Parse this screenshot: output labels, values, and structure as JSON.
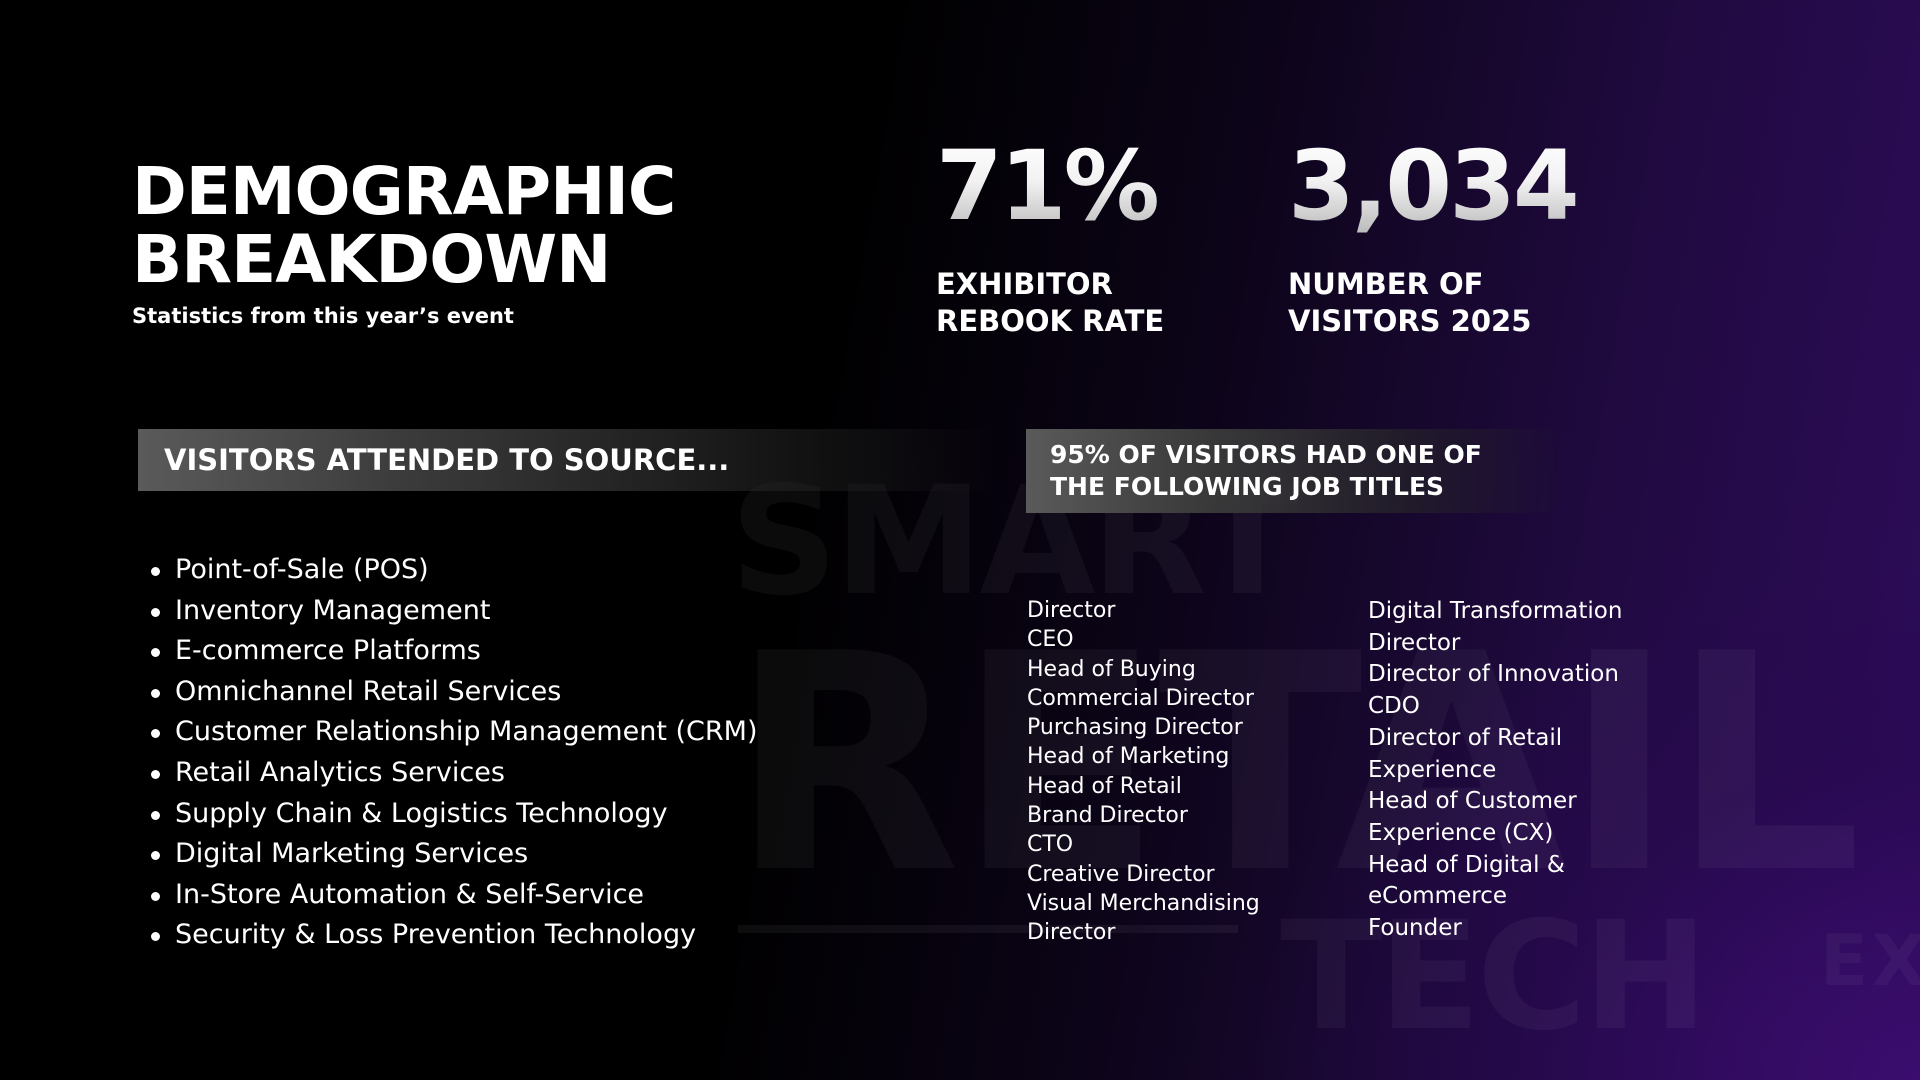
{
  "watermark": {
    "line1": "SMART",
    "line2": "RETAIL",
    "line3": "TECH",
    "line4": "EX"
  },
  "header": {
    "title_line1": "DEMOGRAPHIC",
    "title_line2": "BREAKDOWN",
    "subtitle": "Statistics from this year’s event"
  },
  "stats": [
    {
      "value": "71%",
      "label_line1": "EXHIBITOR",
      "label_line2": "REBOOK RATE"
    },
    {
      "value": "3,034",
      "label_line1": "NUMBER OF",
      "label_line2": "VISITORS 2025"
    }
  ],
  "sources": {
    "heading": "VISITORS ATTENDED TO SOURCE...",
    "items": [
      "Point-of-Sale (POS)",
      "Inventory Management",
      "E-commerce Platforms",
      "Omnichannel Retail Services",
      "Customer Relationship Management (CRM)",
      "Retail Analytics Services",
      "Supply Chain & Logistics Technology",
      "Digital Marketing Services",
      "In-Store Automation & Self-Service",
      "Security & Loss Prevention Technology"
    ]
  },
  "job_titles": {
    "heading_line1": "95% OF VISITORS HAD ONE OF",
    "heading_line2": "THE FOLLOWING JOB TITLES",
    "column1": [
      "Director",
      "CEO",
      "Head of Buying",
      "Commercial Director",
      "Purchasing Director",
      "Head of Marketing",
      "Head of Retail",
      "Brand Director",
      "CTO",
      "Creative Director",
      "Visual Merchandising",
      "Director"
    ],
    "column2": [
      "Digital Transformation Director",
      "Director of Innovation",
      "CDO",
      "Director of Retail Experience",
      "Head of Customer Experience (CX)",
      "Head of Digital & eCommerce",
      "Founder"
    ]
  }
}
